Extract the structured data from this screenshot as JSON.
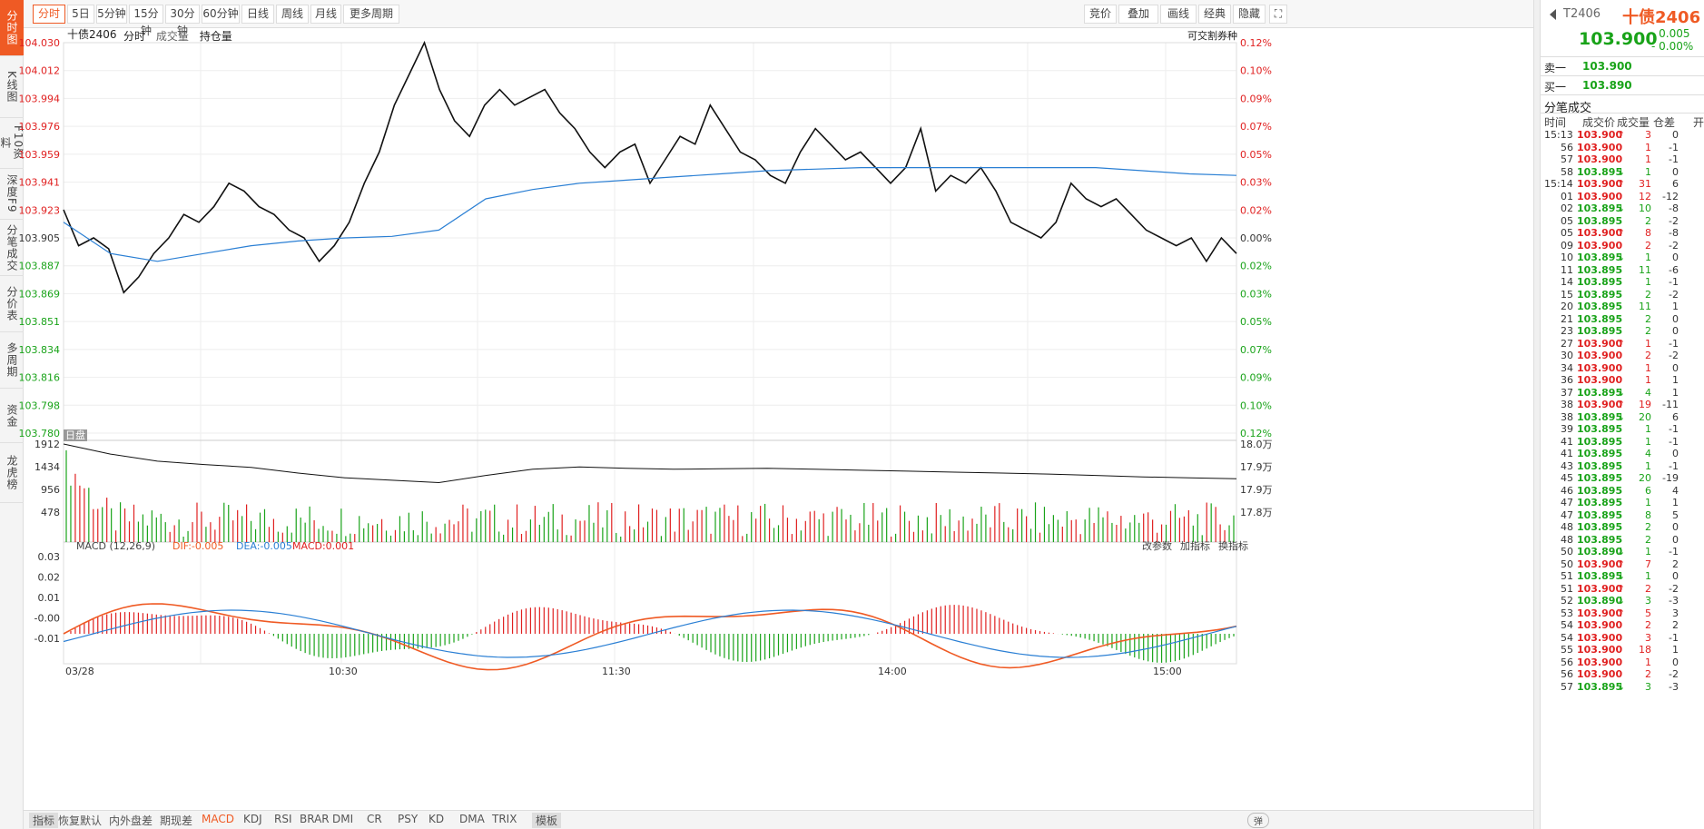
{
  "sidebar": {
    "items": [
      "分时图",
      "K线图",
      "F10资料",
      "深度F9",
      "分笔成交",
      "分价表",
      "多周期",
      "资金",
      "龙虎榜"
    ]
  },
  "toolbar": {
    "left": [
      "分时",
      "5日",
      "5分钟",
      "15分钟",
      "30分钟",
      "60分钟",
      "日线",
      "周线",
      "月线",
      "更多周期"
    ],
    "right": [
      "竞价",
      "叠加",
      "画线",
      "经典",
      "隐藏"
    ]
  },
  "header": {
    "symbol": "十债2406",
    "tabs": [
      "分时",
      "成交量",
      "持仓量"
    ],
    "right_note": "可交割券种",
    "day_label": "日盘"
  },
  "price_axis": {
    "left": [
      "104.030",
      "104.012",
      "103.994",
      "103.976",
      "103.959",
      "103.941",
      "103.923",
      "103.905",
      "103.887",
      "103.869",
      "103.851",
      "103.834",
      "103.816",
      "103.798",
      "103.780"
    ],
    "right": [
      "0.12%",
      "0.10%",
      "0.09%",
      "0.07%",
      "0.05%",
      "0.03%",
      "0.02%",
      "0.00%",
      "0.02%",
      "0.03%",
      "0.05%",
      "0.07%",
      "0.09%",
      "0.10%",
      "0.12%"
    ]
  },
  "volume_axis": {
    "left": [
      "1912",
      "1434",
      "956",
      "478"
    ],
    "right": [
      "18.0万",
      "17.9万",
      "17.9万",
      "17.8万"
    ]
  },
  "macd": {
    "title": "MACD (12,26,9)",
    "dif": "DIF:-0.005",
    "dea": "DEA:-0.005",
    "macd": "MACD:0.001",
    "axis": [
      "0.03",
      "0.02",
      "0.01",
      "-0.00",
      "-0.01"
    ],
    "links": [
      "改参数",
      "加指标",
      "换指标"
    ]
  },
  "time_axis": [
    "03/28",
    "10:30",
    "11:30",
    "14:00",
    "15:00"
  ],
  "bottombar": {
    "items": [
      "指标",
      "恢复默认",
      "内外盘差",
      "期现差",
      "MACD",
      "KDJ",
      "RSI",
      "BRAR",
      "DMI",
      "CR",
      "PSY",
      "KD",
      "DMA",
      "TRIX",
      "模板"
    ],
    "toggle": "弹"
  },
  "colors": {
    "accent": "#ef5a24",
    "up": "#e02020",
    "down": "#19a319",
    "avg": "#2a7fd4",
    "price": "#111111"
  },
  "quote": {
    "code": "T2406",
    "name": "十债2406",
    "price": "103.900",
    "change": "- 0.005",
    "pct": "- 0.00%",
    "sell_label": "卖一",
    "sell": "103.900",
    "buy_label": "买一",
    "buy": "103.890"
  },
  "ticks": {
    "title": "分笔成交",
    "headers": [
      "时间",
      "成交价",
      "成交量",
      "仓差",
      "开"
    ],
    "rows": [
      [
        "15:13",
        "103.900",
        "↑",
        "3",
        "0",
        "u"
      ],
      [
        "56",
        "103.900",
        "",
        "1",
        "-1",
        "u"
      ],
      [
        "57",
        "103.900",
        "",
        "1",
        "-1",
        "u"
      ],
      [
        "58",
        "103.895",
        "↓",
        "1",
        "0",
        "d"
      ],
      [
        "15:14",
        "103.900",
        "↑",
        "31",
        "6",
        "u"
      ],
      [
        "01",
        "103.900",
        "",
        "12",
        "-12",
        "u"
      ],
      [
        "02",
        "103.895",
        "↓",
        "10",
        "-8",
        "d"
      ],
      [
        "05",
        "103.895",
        "",
        "2",
        "-2",
        "d"
      ],
      [
        "05",
        "103.900",
        "↑",
        "8",
        "-8",
        "u"
      ],
      [
        "09",
        "103.900",
        "",
        "2",
        "-2",
        "u"
      ],
      [
        "10",
        "103.895",
        "↓",
        "1",
        "0",
        "d"
      ],
      [
        "11",
        "103.895",
        "",
        "11",
        "-6",
        "d"
      ],
      [
        "14",
        "103.895",
        "",
        "1",
        "-1",
        "d"
      ],
      [
        "15",
        "103.895",
        "",
        "2",
        "-2",
        "d"
      ],
      [
        "20",
        "103.895",
        "",
        "11",
        "1",
        "d"
      ],
      [
        "21",
        "103.895",
        "",
        "2",
        "0",
        "d"
      ],
      [
        "23",
        "103.895",
        "",
        "2",
        "0",
        "d"
      ],
      [
        "27",
        "103.900",
        "↑",
        "1",
        "-1",
        "u"
      ],
      [
        "30",
        "103.900",
        "",
        "2",
        "-2",
        "u"
      ],
      [
        "34",
        "103.900",
        "",
        "1",
        "0",
        "u"
      ],
      [
        "36",
        "103.900",
        "",
        "1",
        "1",
        "u"
      ],
      [
        "37",
        "103.895",
        "↓",
        "4",
        "1",
        "d"
      ],
      [
        "38",
        "103.900",
        "↑",
        "19",
        "-11",
        "u"
      ],
      [
        "38",
        "103.895",
        "↓",
        "20",
        "6",
        "d"
      ],
      [
        "39",
        "103.895",
        "",
        "1",
        "-1",
        "d"
      ],
      [
        "41",
        "103.895",
        "",
        "1",
        "-1",
        "d"
      ],
      [
        "41",
        "103.895",
        "",
        "4",
        "0",
        "d"
      ],
      [
        "43",
        "103.895",
        "",
        "1",
        "-1",
        "d"
      ],
      [
        "45",
        "103.895",
        "",
        "20",
        "-19",
        "d"
      ],
      [
        "46",
        "103.895",
        "",
        "6",
        "4",
        "d"
      ],
      [
        "47",
        "103.895",
        "",
        "1",
        "1",
        "d"
      ],
      [
        "47",
        "103.895",
        "",
        "8",
        "5",
        "d"
      ],
      [
        "48",
        "103.895",
        "",
        "2",
        "0",
        "d"
      ],
      [
        "48",
        "103.895",
        "",
        "2",
        "0",
        "d"
      ],
      [
        "50",
        "103.890",
        "↓",
        "1",
        "-1",
        "d"
      ],
      [
        "50",
        "103.900",
        "↑",
        "7",
        "2",
        "u"
      ],
      [
        "51",
        "103.895",
        "↓",
        "1",
        "0",
        "d"
      ],
      [
        "51",
        "103.900",
        "↑",
        "2",
        "-2",
        "u"
      ],
      [
        "52",
        "103.890",
        "↓",
        "3",
        "-3",
        "d"
      ],
      [
        "53",
        "103.900",
        "↑",
        "5",
        "3",
        "u"
      ],
      [
        "54",
        "103.900",
        "",
        "2",
        "2",
        "u"
      ],
      [
        "54",
        "103.900",
        "",
        "3",
        "-1",
        "u"
      ],
      [
        "55",
        "103.900",
        "",
        "18",
        "1",
        "u"
      ],
      [
        "56",
        "103.900",
        "",
        "1",
        "0",
        "u"
      ],
      [
        "56",
        "103.900",
        "",
        "2",
        "-2",
        "u"
      ],
      [
        "57",
        "103.895",
        "↓",
        "3",
        "-3",
        "d"
      ]
    ]
  }
}
